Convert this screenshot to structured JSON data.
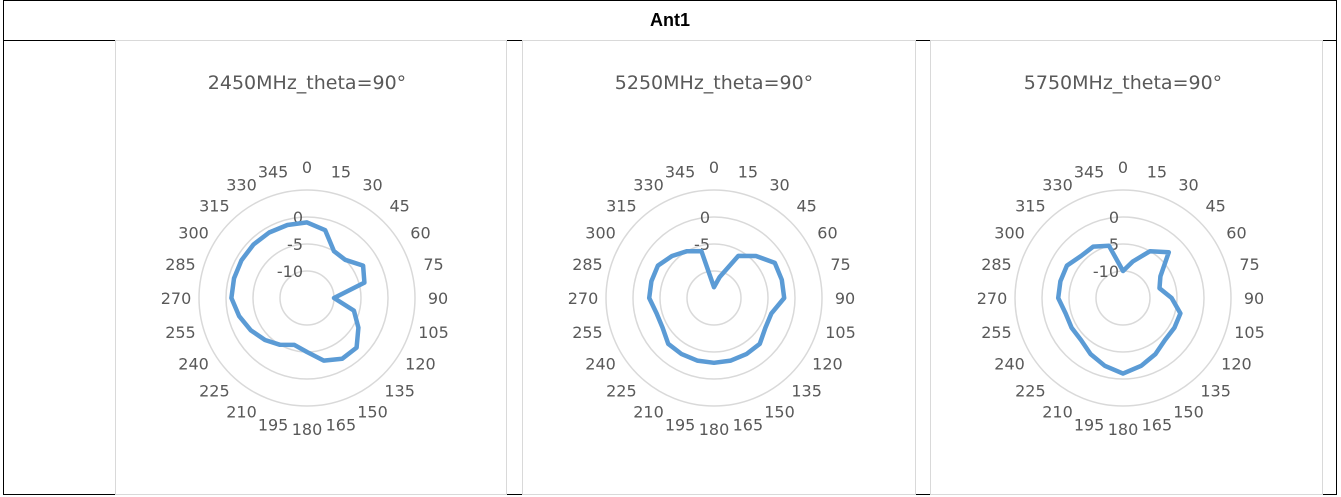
{
  "header": {
    "title": "Ant1"
  },
  "chart_data": [
    {
      "type": "radar",
      "title": "2450MHz_theta=90°",
      "angles": [
        "0",
        "15",
        "30",
        "45",
        "60",
        "75",
        "90",
        "105",
        "120",
        "135",
        "150",
        "165",
        "180",
        "195",
        "210",
        "225",
        "240",
        "255",
        "270",
        "285",
        "300",
        "315",
        "330",
        "345"
      ],
      "radial_ticks": [
        "0",
        "-5",
        "-10"
      ],
      "rlim": [
        -15,
        5
      ],
      "grid": true,
      "legend": "none",
      "color": "#5B9BD5",
      "series": [
        {
          "values": [
            -1,
            -2,
            -5,
            -5,
            -3,
            -4,
            -10,
            -6,
            -4,
            -2,
            -2,
            -3,
            -5,
            -6,
            -5,
            -4,
            -3,
            -2,
            -1,
            -1,
            -1,
            -1,
            -1,
            -1
          ]
        }
      ]
    },
    {
      "type": "radar",
      "title": "5250MHz_theta=90°",
      "angles": [
        "0",
        "15",
        "30",
        "45",
        "60",
        "75",
        "90",
        "105",
        "120",
        "135",
        "150",
        "165",
        "180",
        "195",
        "210",
        "225",
        "240",
        "255",
        "270",
        "285",
        "300",
        "315",
        "330",
        "345"
      ],
      "radial_ticks": [
        "0",
        "-5"
      ],
      "rlim": [
        -15,
        5
      ],
      "grid": true,
      "legend": "none",
      "color": "#5B9BD5",
      "series": [
        {
          "values": [
            -13,
            -11,
            -6,
            -4,
            -2,
            -2,
            -2,
            -4,
            -4,
            -3,
            -3,
            -3,
            -3,
            -3,
            -3,
            -3,
            -4,
            -4,
            -3,
            -3,
            -3,
            -4,
            -5,
            -6
          ]
        }
      ]
    },
    {
      "type": "radar",
      "title": "5750MHz_theta=90°",
      "angles": [
        "0",
        "15",
        "30",
        "45",
        "60",
        "75",
        "90",
        "105",
        "120",
        "135",
        "150",
        "165",
        "180",
        "195",
        "210",
        "225",
        "240",
        "255",
        "270",
        "285",
        "300",
        "315",
        "330",
        "345"
      ],
      "radial_ticks": [
        "0",
        "-5",
        "-10"
      ],
      "rlim": [
        -15,
        5
      ],
      "grid": true,
      "legend": "none",
      "color": "#5B9BD5",
      "series": [
        {
          "values": [
            -10,
            -8,
            -5,
            -3,
            -7,
            -8,
            -6,
            -4,
            -4,
            -4,
            -3,
            -2,
            -1,
            -2,
            -3,
            -4,
            -4,
            -4,
            -3,
            -3,
            -3,
            -4,
            -4,
            -5
          ]
        }
      ]
    }
  ]
}
